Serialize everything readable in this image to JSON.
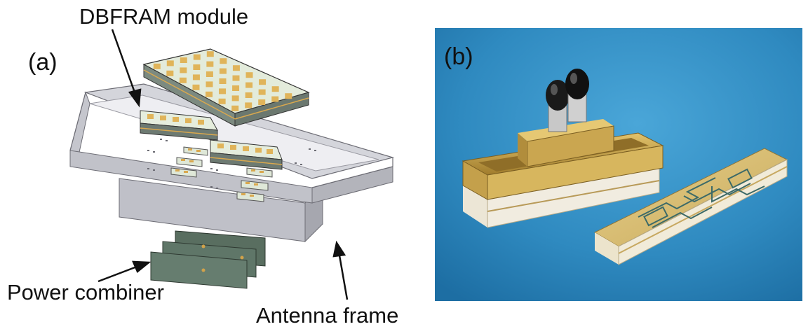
{
  "labels": {
    "module": "DBFRAM module",
    "panel_a": "(a)",
    "panel_b": "(b)",
    "power_combiner": "Power combiner",
    "antenna_frame": "Antenna frame"
  },
  "colors": {
    "frame_gray": "#c9c9cf",
    "patch_gold": "#e0b45a",
    "board_green": "#dfe8d8",
    "combiner_green": "#5e7466",
    "photo_blue": "#2f8ac0"
  }
}
